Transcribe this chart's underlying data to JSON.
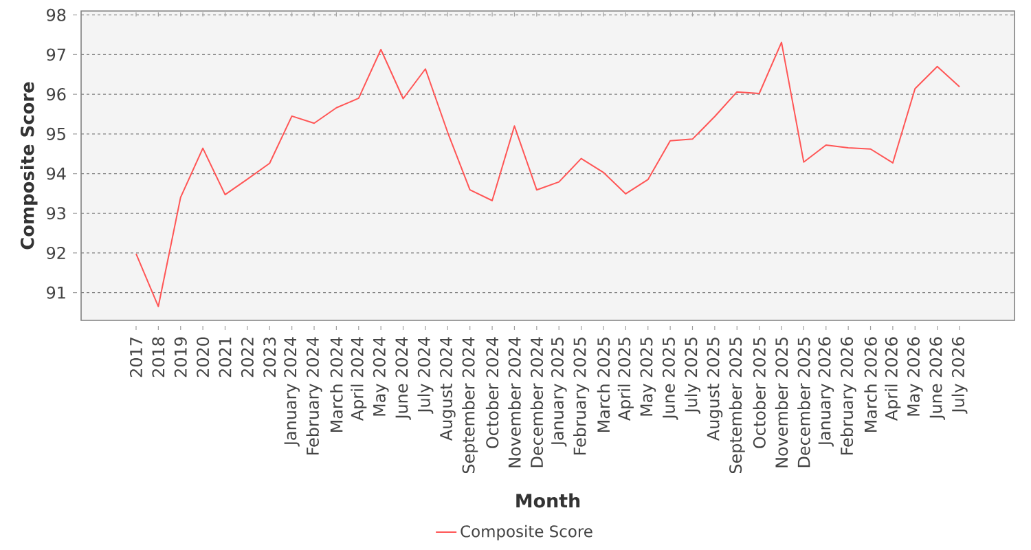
{
  "chart_data": {
    "type": "line",
    "xlabel": "Month",
    "ylabel": "Composite Score",
    "categories": [
      "2017",
      "2018",
      "2019",
      "2020",
      "2021",
      "2022",
      "2023",
      "January 2024",
      "February 2024",
      "March 2024",
      "April 2024",
      "May 2024",
      "June 2024",
      "July 2024",
      "August 2024",
      "September 2024",
      "October 2024",
      "November 2024",
      "December 2024",
      "January 2025",
      "February 2025",
      "March 2025",
      "April 2025",
      "May 2025",
      "June 2025",
      "July 2025",
      "August 2025",
      "September 2025",
      "October 2025",
      "November 2025",
      "December 2025",
      "January 2026",
      "February 2026",
      "March 2026",
      "April 2026",
      "May 2026",
      "June 2026",
      "July 2026"
    ],
    "series": [
      {
        "name": "Composite Score",
        "color": "#ff5555",
        "values": [
          91.98,
          90.65,
          93.4,
          94.64,
          93.47,
          93.86,
          94.26,
          95.45,
          95.27,
          95.66,
          95.9,
          97.13,
          95.89,
          96.64,
          95.04,
          93.59,
          93.32,
          95.2,
          93.59,
          93.79,
          94.38,
          94.03,
          93.49,
          93.85,
          94.83,
          94.87,
          95.44,
          96.06,
          96.02,
          97.31,
          94.29,
          94.72,
          94.65,
          94.62,
          94.27,
          96.14,
          96.7,
          96.19
        ]
      }
    ],
    "ylim": [
      90.3,
      98.1
    ],
    "yticks": [
      91,
      92,
      93,
      94,
      95,
      96,
      97,
      98
    ],
    "grid": "y",
    "legend": "bottom",
    "marker": "none"
  }
}
